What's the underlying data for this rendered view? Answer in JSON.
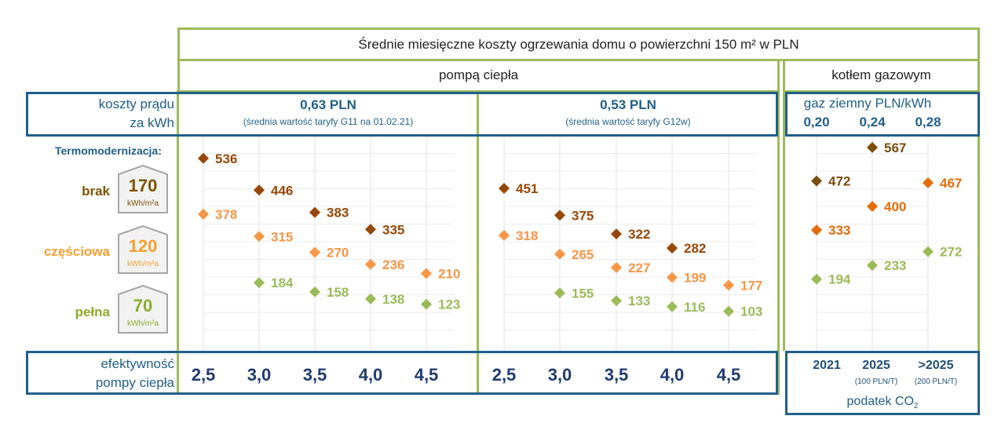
{
  "header": {
    "title": "Średnie miesięczne koszty ogrzewania domu o powierzchni 150 m² w PLN",
    "heat_pump_label": "pompą ciepła",
    "gas_boiler_label": "kotłem gazowym"
  },
  "electricity": {
    "label_line1": "koszty prądu",
    "label_line2": "za kWh",
    "tariff1_price": "0,63 PLN",
    "tariff1_note": "(średnia wartość taryfy G11 na 01.02.21)",
    "tariff2_price": "0,53 PLN",
    "tariff2_note": "(średnia wartość taryfy G12w)"
  },
  "gas": {
    "label": "gaz ziemny PLN/kWh",
    "prices": [
      "0,20",
      "0,24",
      "0,28"
    ],
    "years": [
      "2021",
      "2025",
      ">2025"
    ],
    "tax_notes": [
      "(100 PLN/T)",
      "(200 PLN/T)"
    ],
    "tax_label": "podatek CO",
    "tax_label_sub": "2"
  },
  "insulation": {
    "heading": "Termomodernizacja:",
    "levels": [
      {
        "label": "brak",
        "value": "170",
        "unit": "kWh/m²a",
        "color": "#7f5200"
      },
      {
        "label": "częściowa",
        "value": "120",
        "unit": "kWh/m²a",
        "color": "#f5a031"
      },
      {
        "label": "pełna",
        "value": "70",
        "unit": "kWh/m²a",
        "color": "#8aac2a"
      }
    ]
  },
  "efficiency": {
    "label_line1": "efektywność",
    "label_line2": "pompy ciepła"
  },
  "chart_data": {
    "type": "scatter",
    "ylim": [
      0,
      600
    ],
    "grid": true,
    "panels": [
      {
        "group": "pompą ciepła – 0,63 PLN",
        "x": [
          "2,5",
          "3,0",
          "3,5",
          "4,0",
          "4,5"
        ],
        "series": [
          {
            "name": "brak",
            "color": "#974706",
            "values": [
              536,
              446,
              383,
              335,
              null
            ]
          },
          {
            "name": "częściowa",
            "color": "#f79646",
            "values": [
              378,
              315,
              270,
              236,
              210
            ]
          },
          {
            "name": "pełna",
            "color": "#9bbb59",
            "values": [
              null,
              184,
              158,
              138,
              123
            ]
          }
        ]
      },
      {
        "group": "pompą ciepła – 0,53 PLN",
        "x": [
          "2,5",
          "3,0",
          "3,5",
          "4,0",
          "4,5"
        ],
        "series": [
          {
            "name": "brak",
            "color": "#974706",
            "values": [
              451,
              375,
              322,
              282,
              null
            ]
          },
          {
            "name": "częściowa",
            "color": "#f79646",
            "values": [
              318,
              265,
              227,
              199,
              177
            ]
          },
          {
            "name": "pełna",
            "color": "#9bbb59",
            "values": [
              null,
              155,
              133,
              116,
              103
            ]
          }
        ]
      },
      {
        "group": "kotłem gazowym",
        "x": [
          "2021",
          "2025",
          ">2025"
        ],
        "series": [
          {
            "name": "brak",
            "color": "#7a4e0c",
            "values": [
              472,
              567,
              null
            ]
          },
          {
            "name": "częściowa",
            "color": "#e46c0a",
            "values": [
              333,
              400,
              467
            ]
          },
          {
            "name": "pełna",
            "color": "#9bbb59",
            "values": [
              194,
              233,
              272
            ]
          }
        ]
      }
    ]
  }
}
